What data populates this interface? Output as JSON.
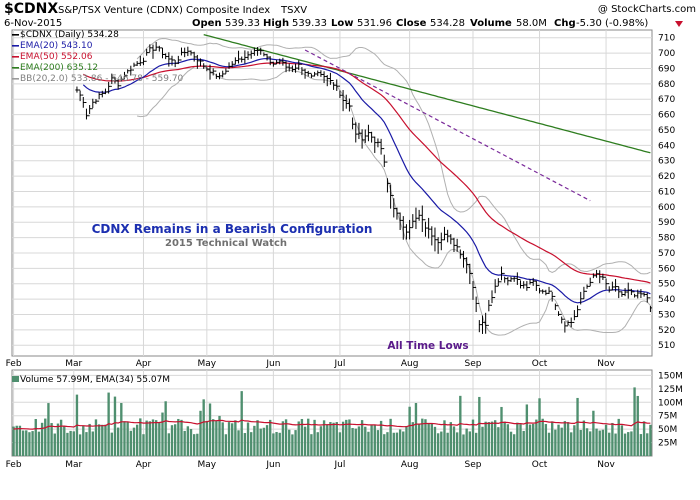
{
  "header": {
    "symbol": "$CDNX",
    "description": "S&P/TSX Venture (CDNX) Composite Index",
    "exchange": "TSXV",
    "watermark": "@ StockCharts.com",
    "date": "6-Nov-2015",
    "open_label": "Open",
    "open_value": "539.33",
    "high_label": "High",
    "high_value": "539.33",
    "low_label": "Low",
    "low_value": "531.96",
    "close_label": "Close",
    "close_value": "534.28",
    "volume_label": "Volume",
    "volume_value": "58.0M",
    "chg_label": "Chg",
    "chg_value": "-5.30 (-0.98%)"
  },
  "legend": {
    "price": "$CDNX (Daily) 534.28",
    "ema20": "EMA(20) 543.10",
    "ema50": "EMA(50) 552.06",
    "ema200": "EMA(200) 635.12",
    "bb": "BB(20,2.0) 533.86 - 546.78 - 559.70",
    "volume": "Volume 57.99M, EMA(34) 55.07M"
  },
  "annotations": {
    "title": "CDNX Remains in a Bearish Configuration",
    "subtitle": "2015 Technical Watch",
    "low_note": "All Time Lows"
  },
  "colors": {
    "price": "#000000",
    "ema20": "#1a1aa6",
    "ema50": "#c8102e",
    "ema200": "#2e7d1f",
    "bb": "#b0b0b0",
    "trendline": "#7a2a9a",
    "volume_bar": "#4f8f6f",
    "volume_ema": "#c8102e",
    "grid": "#d8d8d8"
  },
  "chart_data": [
    {
      "type": "line",
      "name": "price-panel",
      "ylim": [
        503,
        715
      ],
      "y_ticks": [
        510,
        520,
        530,
        540,
        550,
        560,
        570,
        580,
        590,
        600,
        610,
        620,
        630,
        640,
        650,
        660,
        670,
        680,
        690,
        700,
        710
      ],
      "x_ticks": [
        {
          "label": "Feb",
          "index": 0
        },
        {
          "label": "Mar",
          "index": 19
        },
        {
          "label": "Apr",
          "index": 41
        },
        {
          "label": "May",
          "index": 61
        },
        {
          "label": "Jun",
          "index": 82
        },
        {
          "label": "Jul",
          "index": 103
        },
        {
          "label": "Aug",
          "index": 125
        },
        {
          "label": "Sep",
          "index": 145
        },
        {
          "label": "Oct",
          "index": 166
        },
        {
          "label": "Nov",
          "index": 187
        }
      ],
      "price_anchors": [
        [
          20,
          676
        ],
        [
          22,
          669
        ],
        [
          23,
          660
        ],
        [
          25,
          668
        ],
        [
          27,
          672
        ],
        [
          29,
          675
        ],
        [
          31,
          683
        ],
        [
          33,
          680
        ],
        [
          35,
          686
        ],
        [
          38,
          692
        ],
        [
          41,
          696
        ],
        [
          43,
          702
        ],
        [
          45,
          704
        ],
        [
          47,
          700
        ],
        [
          49,
          696
        ],
        [
          51,
          694
        ],
        [
          53,
          699
        ],
        [
          55,
          702
        ],
        [
          57,
          698
        ],
        [
          59,
          694
        ],
        [
          61,
          690
        ],
        [
          63,
          687
        ],
        [
          65,
          684
        ],
        [
          67,
          689
        ],
        [
          69,
          693
        ],
        [
          72,
          697
        ],
        [
          74,
          699
        ],
        [
          76,
          703
        ],
        [
          78,
          701
        ],
        [
          80,
          696
        ],
        [
          82,
          693
        ],
        [
          84,
          695
        ],
        [
          86,
          691
        ],
        [
          88,
          690
        ],
        [
          90,
          692
        ],
        [
          92,
          688
        ],
        [
          94,
          684
        ],
        [
          96,
          686
        ],
        [
          98,
          684
        ],
        [
          100,
          682
        ],
        [
          102,
          679
        ],
        [
          103,
          673
        ],
        [
          104,
          670
        ],
        [
          106,
          665
        ],
        [
          107,
          653
        ],
        [
          108,
          648
        ],
        [
          110,
          645
        ],
        [
          112,
          648
        ],
        [
          114,
          643
        ],
        [
          116,
          638
        ],
        [
          117,
          628
        ],
        [
          118,
          615
        ],
        [
          120,
          600
        ],
        [
          122,
          590
        ],
        [
          124,
          585
        ],
        [
          126,
          590
        ],
        [
          128,
          594
        ],
        [
          130,
          587
        ],
        [
          132,
          582
        ],
        [
          134,
          578
        ],
        [
          136,
          582
        ],
        [
          138,
          578
        ],
        [
          140,
          574
        ],
        [
          142,
          567
        ],
        [
          144,
          558
        ],
        [
          146,
          538
        ],
        [
          147,
          524
        ],
        [
          149,
          524
        ],
        [
          150,
          537
        ],
        [
          152,
          548
        ],
        [
          154,
          557
        ],
        [
          156,
          552
        ],
        [
          158,
          555
        ],
        [
          160,
          549
        ],
        [
          162,
          548
        ],
        [
          164,
          551
        ],
        [
          166,
          546
        ],
        [
          168,
          545
        ],
        [
          170,
          543
        ],
        [
          172,
          531
        ],
        [
          174,
          524
        ],
        [
          176,
          525
        ],
        [
          178,
          533
        ],
        [
          180,
          545
        ],
        [
          182,
          552
        ],
        [
          184,
          556
        ],
        [
          186,
          553
        ],
        [
          188,
          546
        ],
        [
          190,
          547
        ],
        [
          192,
          543
        ],
        [
          194,
          545
        ],
        [
          196,
          542
        ],
        [
          198,
          543
        ],
        [
          200,
          541
        ],
        [
          201,
          534
        ]
      ],
      "volume_panel": {
        "ylim": [
          0,
          160
        ],
        "y_ticks": [
          25,
          50,
          75,
          100,
          125,
          150
        ],
        "y_tick_labels": [
          "25M",
          "50M",
          "75M",
          "100M",
          "125M",
          "150M"
        ],
        "unit": "M",
        "last_volume": 57.99,
        "last_ema34": 55.07
      },
      "trendline": [
        [
          92,
          702
        ],
        [
          182,
          604
        ]
      ],
      "bars": 202
    }
  ]
}
